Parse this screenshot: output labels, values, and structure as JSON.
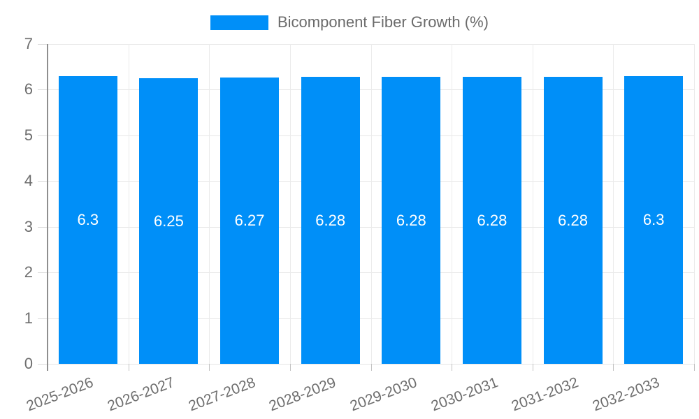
{
  "legend": {
    "label": "Bicomponent Fiber Growth (%)",
    "swatch_color": "#008ff8"
  },
  "chart_data": {
    "type": "bar",
    "series_name": "Bicomponent Fiber Growth (%)",
    "categories": [
      "2025-2026",
      "2026-2027",
      "2027-2028",
      "2028-2029",
      "2029-2030",
      "2030-2031",
      "2031-2032",
      "2032-2033"
    ],
    "values": [
      6.3,
      6.25,
      6.27,
      6.28,
      6.28,
      6.28,
      6.28,
      6.3
    ],
    "bar_labels": [
      "6.3",
      "6.25",
      "6.27",
      "6.28",
      "6.28",
      "6.28",
      "6.28",
      "6.3"
    ],
    "title": "",
    "xlabel": "",
    "ylabel": "",
    "ylim": [
      0,
      7
    ],
    "yticks": [
      0,
      1,
      2,
      3,
      4,
      5,
      6,
      7
    ],
    "grid": true,
    "legend_position": "top",
    "colors": {
      "bar": "#008ff8",
      "bar_label_text": "#ffffff",
      "axis_text": "#6e6e6e",
      "legend_text": "#6b6b6b",
      "gridline": "#e6e6e6",
      "axis_line": "#8f8f8f"
    }
  }
}
